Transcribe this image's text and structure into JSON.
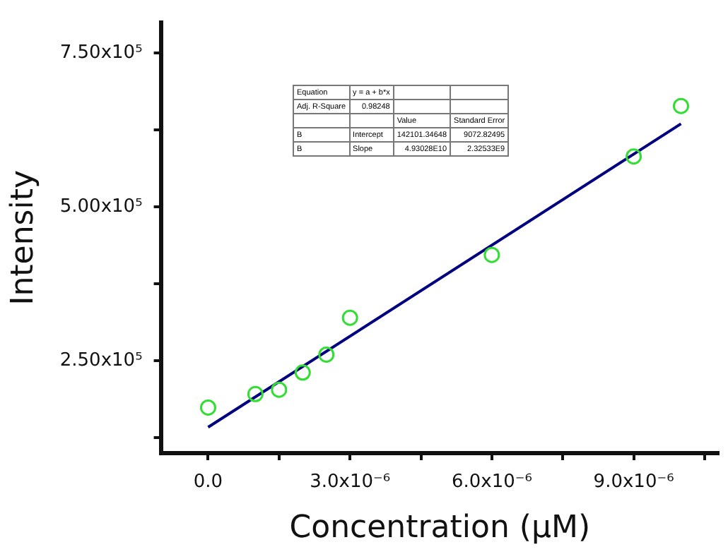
{
  "chart_data": {
    "type": "scatter",
    "xlabel": "Concentration (μM)",
    "ylabel": "Intensity",
    "xlim": [
      -1e-06,
      1.08e-05
    ],
    "ylim": [
      100000.0,
      800000.0
    ],
    "xticks": [
      {
        "value": 0,
        "label": "0.0"
      },
      {
        "value": 1.5e-06,
        "label": null
      },
      {
        "value": 3e-06,
        "label": "3.0x10⁻⁶"
      },
      {
        "value": 4.5e-06,
        "label": null
      },
      {
        "value": 6e-06,
        "label": "6.0x10⁻⁶"
      },
      {
        "value": 7.5e-06,
        "label": null
      },
      {
        "value": 9e-06,
        "label": "9.0x10⁻⁶"
      },
      {
        "value": 1.05e-05,
        "label": null
      }
    ],
    "yticks": [
      {
        "value": 125000.0,
        "label": null
      },
      {
        "value": 250000.0,
        "label": "2.50x10⁵"
      },
      {
        "value": 375000.0,
        "label": null
      },
      {
        "value": 500000.0,
        "label": "5.00x10⁵"
      },
      {
        "value": 625000.0,
        "label": null
      },
      {
        "value": 750000.0,
        "label": "7.50x10⁵"
      }
    ],
    "grid": false,
    "legend": false,
    "series": [
      {
        "color": "#33dd33",
        "marker": "circle",
        "x": [
          0,
          1e-06,
          1.5e-06,
          2e-06,
          2.5e-06,
          3e-06,
          6e-06,
          9e-06,
          1e-05
        ],
        "values": [
          174000,
          196000,
          203000,
          231000,
          260000,
          320000,
          422000,
          582000,
          664000
        ]
      },
      {
        "type": "line",
        "color": "#000080",
        "line_style": "solid",
        "x": [
          0,
          1e-05
        ],
        "values": [
          142100,
          635100
        ]
      }
    ],
    "annotations": [
      "Equation",
      "y = a + b*x",
      "Adj. R-Square",
      "0.98248",
      "Value",
      "Standard Error",
      "B",
      "Intercept",
      "142101.34648",
      "9072.82495",
      "B",
      "Slope",
      "4.93028E10",
      "2.32533E9"
    ]
  }
}
